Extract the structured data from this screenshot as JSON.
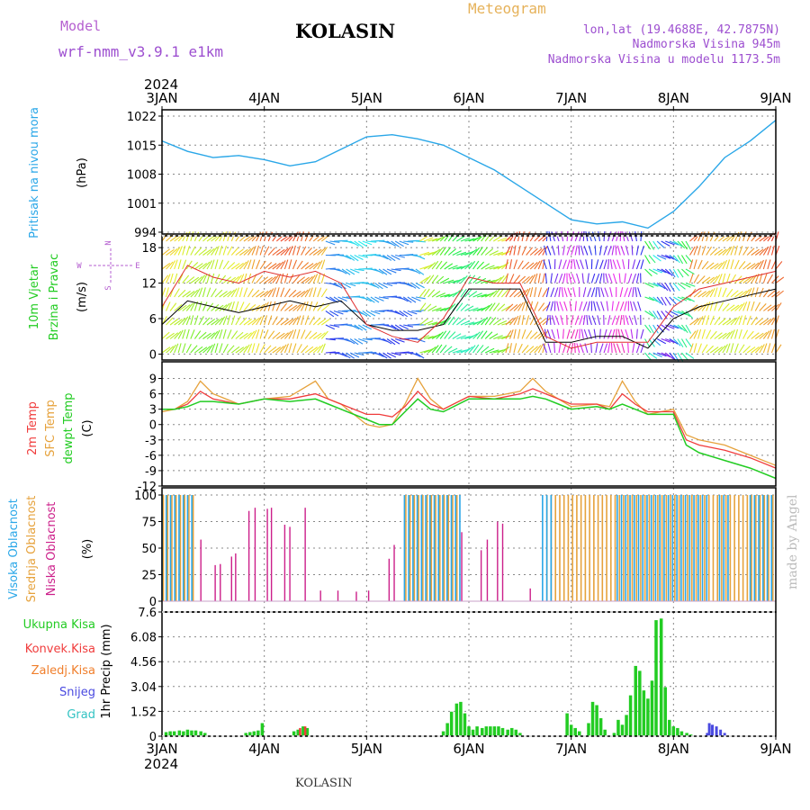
{
  "header": {
    "model_label": "Model",
    "model_name": "wrf-nmm_v3.9.1 e1km",
    "station": "KOLASIN",
    "product": "Meteogram",
    "coords": "lon,lat (19.4688E, 42.7875N)",
    "elevation": "Nadmorska Visina 945m",
    "model_elevation": "Nadmorska Visina u modelu 1173.5m",
    "year": "2024",
    "footer_station": "KOLASIN",
    "credit": "made by Angel"
  },
  "x_axis": {
    "ticks": [
      "3JAN",
      "4JAN",
      "5JAN",
      "6JAN",
      "7JAN",
      "8JAN",
      "9JAN"
    ]
  },
  "colors": {
    "pressure": "#2aa7e8",
    "temp2m": "#f03c3c",
    "sfc": "#e6a23c",
    "dewpt": "#22cc22",
    "high_cloud": "#2aa7e8",
    "mid_cloud": "#e6a23c",
    "low_cloud": "#cc1f8a",
    "precip_total": "#22cc22",
    "precip_conv": "#f03c3c",
    "precip_frz": "#f07f2c",
    "snow": "#4a4ae0",
    "grad": "#33c3c3"
  },
  "chart_data": [
    {
      "type": "line",
      "panel": "pressure",
      "ylabel_1": "Pritisak na nivou mora",
      "ylabel_2": "(hPa)",
      "ylim": [
        994,
        1022
      ],
      "yticks": [
        "1022",
        "1015",
        "1008",
        "1001",
        "994"
      ],
      "x_days": [
        0,
        0.25,
        0.5,
        0.75,
        1.0,
        1.25,
        1.5,
        1.75,
        2.0,
        2.25,
        2.5,
        2.75,
        3.0,
        3.25,
        3.5,
        3.75,
        4.0,
        4.25,
        4.5,
        4.75,
        5.0,
        5.25,
        5.5,
        5.75,
        6.0
      ],
      "values": [
        1016,
        1013.5,
        1012,
        1012.5,
        1011.5,
        1010,
        1011,
        1014,
        1017,
        1017.5,
        1016.5,
        1015,
        1012,
        1009,
        1005,
        1001,
        997,
        996,
        996.5,
        995,
        999,
        1005,
        1012,
        1016,
        1021
      ]
    },
    {
      "type": "line",
      "panel": "wind",
      "ylabel_1": "10m Vjetar",
      "ylabel_2": "Brzina i Pravac",
      "ylabel_3": "(m/s)",
      "compass": {
        "n": "N",
        "s": "S",
        "e": "E",
        "w": "W"
      },
      "ylim": [
        -1,
        20
      ],
      "yticks": [
        "18",
        "12",
        "6",
        "0"
      ],
      "x_days": [
        0,
        0.25,
        0.5,
        0.75,
        1.0,
        1.25,
        1.5,
        1.75,
        2.0,
        2.25,
        2.5,
        2.75,
        3.0,
        3.25,
        3.5,
        3.75,
        4.0,
        4.25,
        4.5,
        4.75,
        5.0,
        5.25,
        5.5,
        5.75,
        6.0
      ],
      "series": [
        {
          "values": [
            5,
            9,
            8,
            7,
            8,
            9,
            8,
            9,
            5,
            4,
            4,
            5,
            11,
            11,
            11,
            2,
            2,
            3,
            3,
            1,
            6,
            8,
            9,
            10,
            11
          ]
        },
        {
          "values": [
            8,
            15,
            13,
            12,
            14,
            13,
            14,
            12,
            5,
            3,
            2,
            6,
            13,
            12,
            12,
            3,
            1,
            2,
            2,
            2,
            8,
            11,
            12,
            13,
            14
          ]
        }
      ]
    },
    {
      "type": "line",
      "panel": "temperature",
      "ylabel_1": "2m Temp",
      "ylabel_2": "SFC Temp",
      "ylabel_3": "dewpt Temp",
      "ylabel_4": "(C)",
      "ylim": [
        -12,
        10.5
      ],
      "yticks": [
        "9",
        "6",
        "3",
        "0",
        "-3",
        "-6",
        "-9",
        "-12"
      ],
      "x_days": [
        0,
        0.125,
        0.25,
        0.375,
        0.5,
        0.75,
        1.0,
        1.25,
        1.5,
        1.625,
        1.75,
        2.0,
        2.125,
        2.25,
        2.375,
        2.5,
        2.625,
        2.75,
        3.0,
        3.25,
        3.5,
        3.625,
        3.75,
        3.875,
        4.0,
        4.25,
        4.375,
        4.5,
        4.625,
        4.75,
        5.0,
        5.125,
        5.25,
        5.5,
        5.75,
        6.0
      ],
      "series": [
        {
          "name": "2m Temp",
          "values": [
            3,
            3,
            4,
            6.5,
            5,
            4,
            5,
            5,
            6,
            5,
            4,
            2,
            2,
            1.5,
            3.5,
            6.5,
            4,
            3,
            5.5,
            5,
            6,
            7,
            6,
            5,
            4,
            4,
            3,
            6,
            4,
            2.5,
            2.5,
            -3,
            -4,
            -5,
            -6.5,
            -8.5
          ]
        },
        {
          "name": "SFC Temp",
          "values": [
            2.5,
            3,
            4.5,
            8.5,
            6,
            4,
            5,
            5.5,
            8.5,
            5,
            4,
            0,
            -0.5,
            0,
            4,
            9,
            5,
            3,
            5.5,
            5.5,
            6.5,
            9,
            6.5,
            5,
            3.5,
            4,
            3.5,
            8.5,
            4.5,
            2,
            3,
            -2,
            -3,
            -4,
            -6,
            -8
          ]
        },
        {
          "name": "dewpt Temp",
          "values": [
            3,
            3,
            3.5,
            4.5,
            4.5,
            4,
            5,
            4.5,
            5,
            4,
            3,
            1,
            0,
            0,
            2.5,
            5,
            3,
            2.5,
            5,
            5,
            5,
            5.5,
            5,
            4,
            3,
            3.5,
            3,
            4,
            3,
            2,
            2,
            -4,
            -5.5,
            -7,
            -8.5,
            -10.5
          ]
        }
      ]
    },
    {
      "type": "bar",
      "panel": "cloud",
      "ylabel_1": "Visoka Oblacnost",
      "ylabel_2": "Srednja Oblacnost",
      "ylabel_3": "Niska Oblacnost",
      "ylabel_4": "(%)",
      "ylim": [
        0,
        100
      ],
      "yticks": [
        "100",
        "75",
        "50",
        "25",
        "0"
      ],
      "high_intervals_days": [
        [
          0.0,
          0.33
        ],
        [
          2.37,
          2.93
        ],
        [
          3.72,
          3.82
        ],
        [
          4.45,
          5.35
        ],
        [
          5.45,
          5.55
        ],
        [
          5.75,
          6.0
        ]
      ],
      "mid_intervals_days": [
        [
          0.0,
          0.33
        ],
        [
          2.37,
          2.88
        ],
        [
          3.75,
          6.0
        ]
      ],
      "low_bars": [
        {
          "x": 0.38,
          "y": 58
        },
        {
          "x": 0.52,
          "y": 34
        },
        {
          "x": 0.57,
          "y": 35
        },
        {
          "x": 0.68,
          "y": 42
        },
        {
          "x": 0.72,
          "y": 45
        },
        {
          "x": 0.85,
          "y": 85
        },
        {
          "x": 0.91,
          "y": 88
        },
        {
          "x": 1.03,
          "y": 87
        },
        {
          "x": 1.07,
          "y": 88
        },
        {
          "x": 1.2,
          "y": 72
        },
        {
          "x": 1.25,
          "y": 70
        },
        {
          "x": 1.4,
          "y": 88
        },
        {
          "x": 1.55,
          "y": 10
        },
        {
          "x": 1.72,
          "y": 10
        },
        {
          "x": 1.9,
          "y": 9
        },
        {
          "x": 2.02,
          "y": 10
        },
        {
          "x": 2.22,
          "y": 40
        },
        {
          "x": 2.27,
          "y": 53
        },
        {
          "x": 2.93,
          "y": 65
        },
        {
          "x": 3.12,
          "y": 48
        },
        {
          "x": 3.18,
          "y": 58
        },
        {
          "x": 3.28,
          "y": 75
        },
        {
          "x": 3.33,
          "y": 73
        },
        {
          "x": 3.6,
          "y": 12
        }
      ]
    },
    {
      "type": "bar",
      "panel": "precip",
      "ylabel": "1hr Precip (mm)",
      "legend": [
        "Ukupna Kisa",
        "Konvek.Kisa",
        "Zaledj.Kisa",
        "Snijeg",
        "Grad"
      ],
      "ylim": [
        0,
        7.6
      ],
      "yticks": [
        "7.6",
        "6.08",
        "4.56",
        "3.04",
        "1.52",
        "0"
      ],
      "total_bars": [
        {
          "x": 0.04,
          "y": 0.25
        },
        {
          "x": 0.08,
          "y": 0.3
        },
        {
          "x": 0.12,
          "y": 0.3
        },
        {
          "x": 0.17,
          "y": 0.35
        },
        {
          "x": 0.21,
          "y": 0.3
        },
        {
          "x": 0.25,
          "y": 0.4
        },
        {
          "x": 0.29,
          "y": 0.35
        },
        {
          "x": 0.33,
          "y": 0.35
        },
        {
          "x": 0.38,
          "y": 0.3
        },
        {
          "x": 0.42,
          "y": 0.2
        },
        {
          "x": 0.82,
          "y": 0.2
        },
        {
          "x": 0.86,
          "y": 0.25
        },
        {
          "x": 0.9,
          "y": 0.3
        },
        {
          "x": 0.94,
          "y": 0.35
        },
        {
          "x": 0.98,
          "y": 0.8
        },
        {
          "x": 1.29,
          "y": 0.3
        },
        {
          "x": 1.33,
          "y": 0.4
        },
        {
          "x": 1.38,
          "y": 0.6
        },
        {
          "x": 1.42,
          "y": 0.5
        },
        {
          "x": 2.75,
          "y": 0.3
        },
        {
          "x": 2.79,
          "y": 0.8
        },
        {
          "x": 2.83,
          "y": 1.5
        },
        {
          "x": 2.88,
          "y": 2.0
        },
        {
          "x": 2.92,
          "y": 2.1
        },
        {
          "x": 2.96,
          "y": 1.4
        },
        {
          "x": 3.0,
          "y": 0.6
        },
        {
          "x": 3.04,
          "y": 0.4
        },
        {
          "x": 3.08,
          "y": 0.6
        },
        {
          "x": 3.13,
          "y": 0.5
        },
        {
          "x": 3.17,
          "y": 0.6
        },
        {
          "x": 3.21,
          "y": 0.6
        },
        {
          "x": 3.25,
          "y": 0.6
        },
        {
          "x": 3.29,
          "y": 0.6
        },
        {
          "x": 3.33,
          "y": 0.5
        },
        {
          "x": 3.38,
          "y": 0.4
        },
        {
          "x": 3.42,
          "y": 0.5
        },
        {
          "x": 3.46,
          "y": 0.4
        },
        {
          "x": 3.5,
          "y": 0.2
        },
        {
          "x": 3.96,
          "y": 1.4
        },
        {
          "x": 4.0,
          "y": 0.7
        },
        {
          "x": 4.04,
          "y": 0.5
        },
        {
          "x": 4.08,
          "y": 0.3
        },
        {
          "x": 4.17,
          "y": 0.8
        },
        {
          "x": 4.21,
          "y": 2.1
        },
        {
          "x": 4.25,
          "y": 1.9
        },
        {
          "x": 4.29,
          "y": 1.1
        },
        {
          "x": 4.33,
          "y": 0.4
        },
        {
          "x": 4.42,
          "y": 0.2
        },
        {
          "x": 4.46,
          "y": 1.0
        },
        {
          "x": 4.5,
          "y": 0.7
        },
        {
          "x": 4.54,
          "y": 1.3
        },
        {
          "x": 4.58,
          "y": 2.5
        },
        {
          "x": 4.63,
          "y": 4.3
        },
        {
          "x": 4.67,
          "y": 4.0
        },
        {
          "x": 4.71,
          "y": 2.8
        },
        {
          "x": 4.75,
          "y": 2.3
        },
        {
          "x": 4.79,
          "y": 3.4
        },
        {
          "x": 4.83,
          "y": 7.1
        },
        {
          "x": 4.88,
          "y": 7.2
        },
        {
          "x": 4.92,
          "y": 3.0
        },
        {
          "x": 4.96,
          "y": 1.0
        },
        {
          "x": 5.0,
          "y": 0.6
        },
        {
          "x": 5.04,
          "y": 0.5
        },
        {
          "x": 5.08,
          "y": 0.3
        },
        {
          "x": 5.13,
          "y": 0.2
        },
        {
          "x": 5.17,
          "y": 0.1
        }
      ],
      "conv_bars": [
        {
          "x": 1.35,
          "y": 0.5
        },
        {
          "x": 1.4,
          "y": 0.6
        }
      ],
      "snow_bars": [
        {
          "x": 5.33,
          "y": 0.2
        },
        {
          "x": 5.35,
          "y": 0.8
        },
        {
          "x": 5.38,
          "y": 0.7
        },
        {
          "x": 5.42,
          "y": 0.6
        },
        {
          "x": 5.46,
          "y": 0.4
        },
        {
          "x": 5.5,
          "y": 0.2
        }
      ]
    }
  ]
}
